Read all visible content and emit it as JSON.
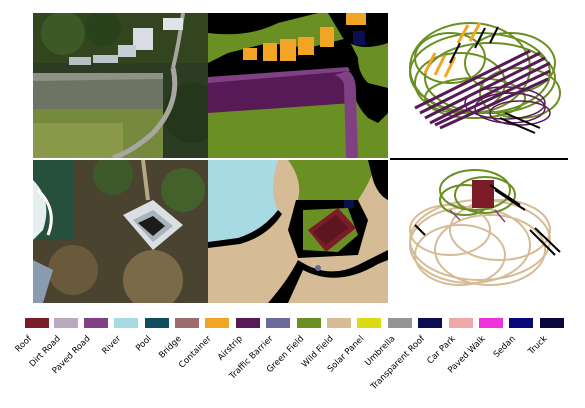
{
  "figure": {
    "rows": [
      {
        "name": "row-1",
        "panels": [
          "aerial-photo",
          "segmentation-map",
          "pointcloud-render"
        ]
      },
      {
        "name": "row-2",
        "panels": [
          "aerial-photo",
          "segmentation-map",
          "pointcloud-render"
        ]
      }
    ]
  },
  "legend": {
    "items": [
      {
        "label": "Roof",
        "color": "#7b1c28"
      },
      {
        "label": "Dirt Road",
        "color": "#b9a9bf"
      },
      {
        "label": "Paved Road",
        "color": "#7f4183"
      },
      {
        "label": "River",
        "color": "#a8dae4"
      },
      {
        "label": "Pool",
        "color": "#0f4e5c"
      },
      {
        "label": "Bridge",
        "color": "#9b6b6e"
      },
      {
        "label": "Container",
        "color": "#f2a525"
      },
      {
        "label": "Airstrip",
        "color": "#571a56"
      },
      {
        "label": "Traffic Barrier",
        "color": "#6c6a9b"
      },
      {
        "label": "Green Field",
        "color": "#6a8f23"
      },
      {
        "label": "Wild Field",
        "color": "#d6bb97"
      },
      {
        "label": "Solar Panel",
        "color": "#dcdc12"
      },
      {
        "label": "Umbrella",
        "color": "#949494"
      },
      {
        "label": "Transparent Roof",
        "color": "#0d0d52"
      },
      {
        "label": "Car Park",
        "color": "#f0a8a8"
      },
      {
        "label": "Paved Walk",
        "color": "#ee33dd"
      },
      {
        "label": "Sedan",
        "color": "#070778"
      },
      {
        "label": "Truck",
        "color": "#09093f"
      }
    ]
  }
}
